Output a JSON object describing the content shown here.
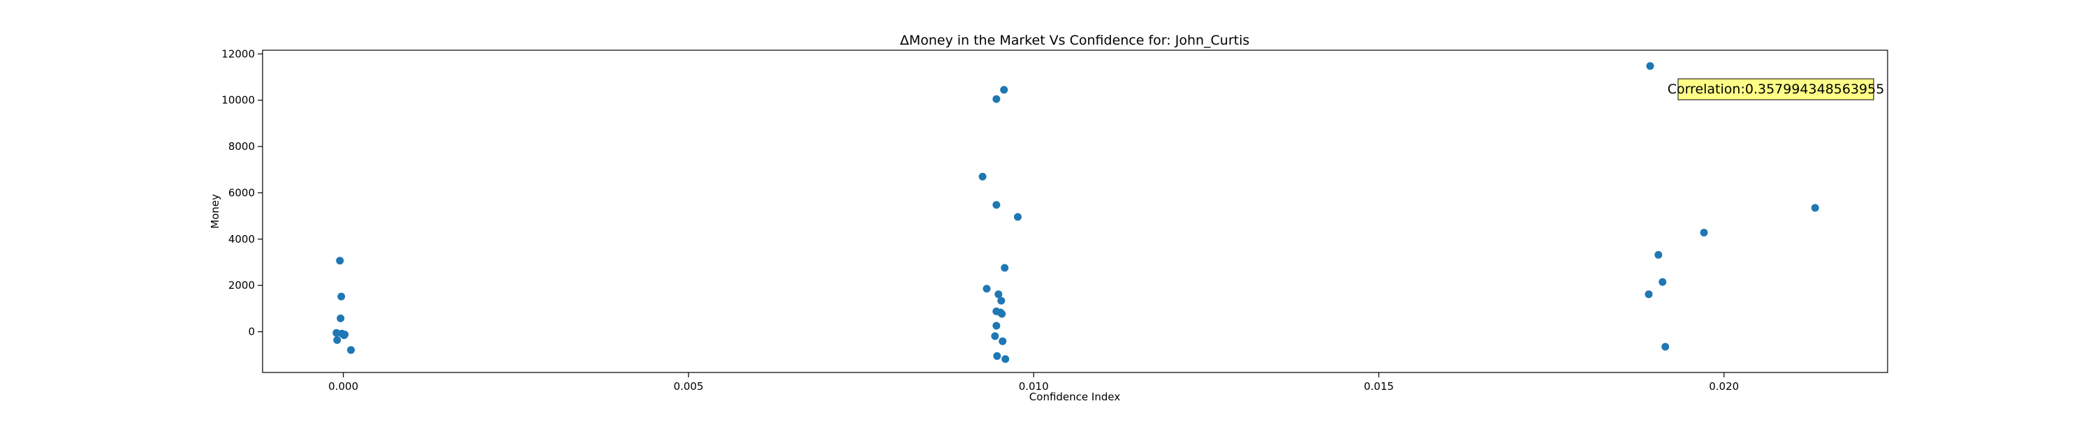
{
  "chart_data": {
    "type": "scatter",
    "title": "ΔMoney in the Market Vs Confidence for: John_Curtis",
    "xlabel": "Confidence Index",
    "ylabel": "Money",
    "xlim": [
      -0.00117,
      0.02237
    ],
    "ylim": [
      -1760,
      12160
    ],
    "xticks": [
      0.0,
      0.005,
      0.01,
      0.015,
      0.02
    ],
    "xtick_labels": [
      "0.000",
      "0.005",
      "0.010",
      "0.015",
      "0.020"
    ],
    "yticks": [
      0,
      2000,
      4000,
      6000,
      8000,
      10000,
      12000
    ],
    "ytick_labels": [
      "0",
      "2000",
      "4000",
      "6000",
      "8000",
      "10000",
      "12000"
    ],
    "grid": false,
    "marker_color": "#1f77b4",
    "annotation": {
      "text": "Correlation:0.357994348563955",
      "position": "top-right",
      "background": "#ffff88"
    },
    "series": [
      {
        "x": [
          -5e-05,
          -3e-05,
          -4e-05,
          -0.0001,
          -2e-05,
          1e-05,
          2e-05,
          -9e-05,
          0.00011,
          0.00926,
          0.00946,
          0.00957,
          0.00946,
          0.00977,
          0.00958,
          0.00932,
          0.00949,
          0.00953,
          0.00946,
          0.00952,
          0.00954,
          0.00946,
          0.00944,
          0.00955,
          0.00947,
          0.00959,
          0.01893,
          0.01905,
          0.01911,
          0.01971,
          0.02132,
          0.01891,
          0.01915
        ],
        "y": [
          3070,
          1520,
          580,
          -50,
          -80,
          -150,
          -120,
          -360,
          -790,
          6700,
          10050,
          10450,
          5480,
          4960,
          2760,
          1860,
          1620,
          1340,
          880,
          830,
          770,
          260,
          -190,
          -410,
          -1050,
          -1180,
          11480,
          3320,
          2150,
          4280,
          5350,
          1620,
          -650
        ]
      }
    ]
  }
}
